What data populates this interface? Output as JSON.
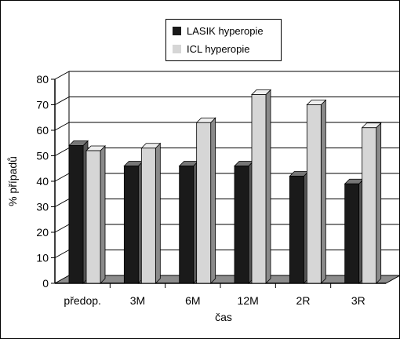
{
  "chart_data": {
    "type": "bar",
    "categories": [
      "předop.",
      "3M",
      "6M",
      "12M",
      "2R",
      "3R"
    ],
    "series": [
      {
        "name": "LASIK hyperopie",
        "values": [
          54,
          46,
          46,
          46,
          42,
          39
        ],
        "color": "#1a1a1a"
      },
      {
        "name": "ICL hyperopie",
        "values": [
          52,
          53,
          63,
          74,
          70,
          61
        ],
        "color": "#d6d6d6"
      }
    ],
    "title": "",
    "xlabel": "čas",
    "ylabel": "% případů",
    "ylim": [
      0,
      80
    ],
    "yticks": [
      "0",
      "10",
      "20",
      "30",
      "40",
      "50",
      "60",
      "70",
      "80"
    ],
    "grid": true,
    "legend_position": "top-center",
    "style": "3d"
  }
}
